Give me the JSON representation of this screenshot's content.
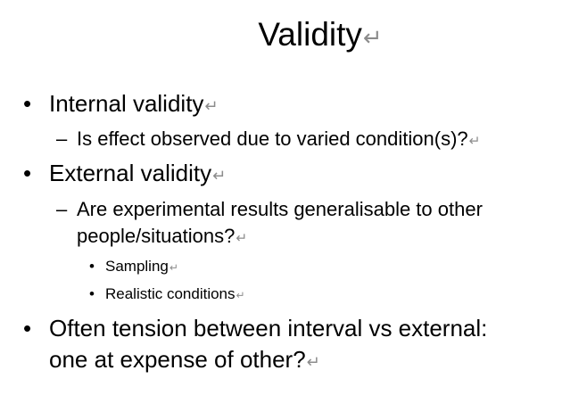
{
  "slide": {
    "title": "Validity",
    "return_mark": "↵",
    "bullets": [
      {
        "marker": "•",
        "text": "Internal validity"
      },
      {
        "marker": "–",
        "text": "Is effect observed due to varied condition(s)?"
      },
      {
        "marker": "•",
        "text": "External validity"
      },
      {
        "marker": "–",
        "text_line1": "Are experimental results generalisable to other",
        "text_line2": "people/situations?"
      },
      {
        "marker": "•",
        "text": "Sampling"
      },
      {
        "marker": "•",
        "text": "Realistic conditions"
      },
      {
        "marker": "•",
        "text_line1": "Often tension between interval vs external:",
        "text_line2": "one at expense of other?"
      }
    ]
  }
}
